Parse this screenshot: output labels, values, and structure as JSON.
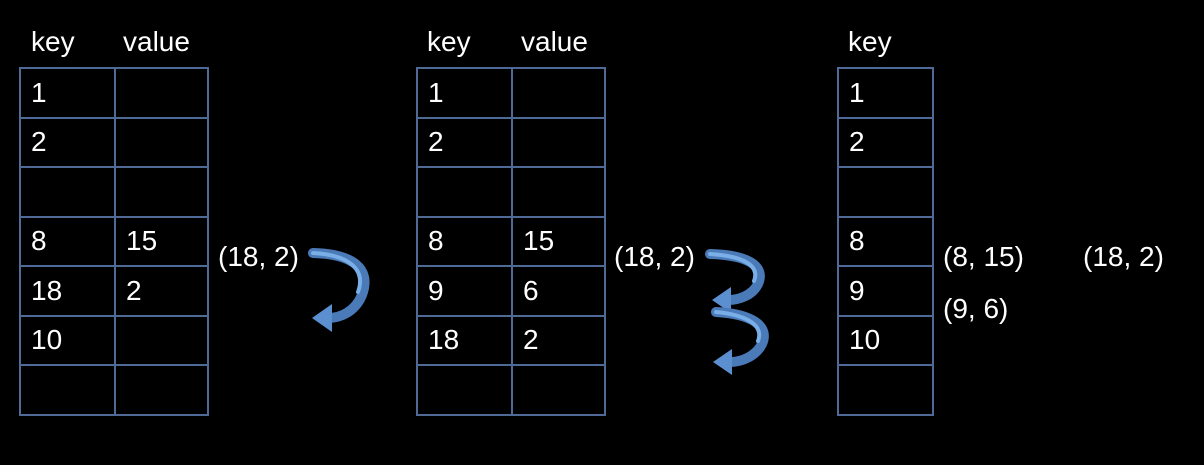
{
  "accent": "#5b8fcf",
  "border": "#4f6a96",
  "table1": {
    "key_header": "key",
    "value_header": "value",
    "rows": [
      {
        "key": "1",
        "value": ""
      },
      {
        "key": "2",
        "value": ""
      },
      {
        "key": "",
        "value": ""
      },
      {
        "key": "8",
        "value": "15"
      },
      {
        "key": "18",
        "value": "2"
      },
      {
        "key": "10",
        "value": ""
      },
      {
        "key": "",
        "value": ""
      }
    ],
    "note": "(18, 2)"
  },
  "table2": {
    "key_header": "key",
    "value_header": "value",
    "rows": [
      {
        "key": "1",
        "value": ""
      },
      {
        "key": "2",
        "value": ""
      },
      {
        "key": "",
        "value": ""
      },
      {
        "key": "8",
        "value": "15"
      },
      {
        "key": "9",
        "value": "6"
      },
      {
        "key": "18",
        "value": "2"
      },
      {
        "key": "",
        "value": ""
      }
    ],
    "note": "(18, 2)"
  },
  "table3": {
    "key_header": "key",
    "rows": [
      {
        "key": "1"
      },
      {
        "key": "2"
      },
      {
        "key": ""
      },
      {
        "key": "8"
      },
      {
        "key": "9"
      },
      {
        "key": "10"
      },
      {
        "key": ""
      }
    ],
    "notes": [
      "(8, 15)",
      "(9, 6)",
      "(18, 2)"
    ]
  }
}
